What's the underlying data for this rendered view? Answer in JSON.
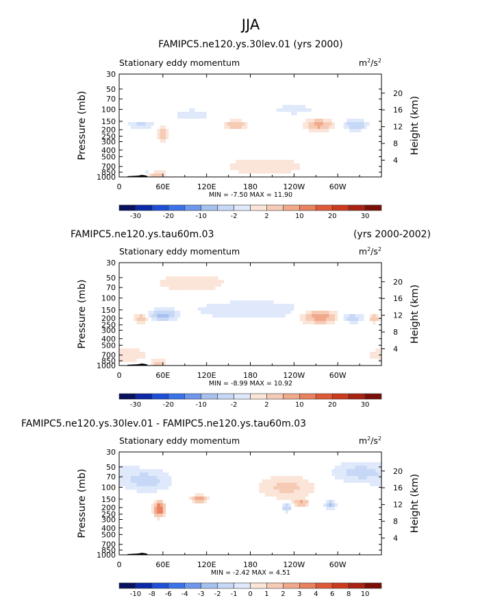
{
  "main_title": "JJA",
  "colors": {
    "neutral": "#ffffff",
    "neg1": "#dfe9fb",
    "neg2": "#c6d8f5",
    "neg3": "#a7c1ef",
    "pos1": "#fbe5d9",
    "pos2": "#f6cbb5",
    "pos3": "#f0a98b",
    "pos4": "#e8815f",
    "scale_negative": [
      "#08125e",
      "#0b28a8",
      "#1f4fd6",
      "#3a72e8",
      "#6f97ec",
      "#a7c1ef",
      "#c6d8f5",
      "#dfe9fb"
    ],
    "scale_positive": [
      "#fbe5d9",
      "#f6cbb5",
      "#f0a98b",
      "#e8815f",
      "#de5a37",
      "#cc3a1e",
      "#a82314",
      "#7a0f08"
    ],
    "topography": "#000000"
  },
  "chart_data": [
    {
      "type": "heatmap",
      "title": "FAMIPC5.ne120.ys.30lev.01 (yrs 2000)",
      "title_right": "",
      "subtitle_left": "Stationary eddy momentum",
      "units_base": "m",
      "units_exp1": "2",
      "units_mid": "/s",
      "units_exp2": "2",
      "ylabel": "Pressure (mb)",
      "ylabel_right": "Height (km)",
      "pressure_ticks": [
        "30",
        "50",
        "70",
        "100",
        "150",
        "200",
        "250",
        "300",
        "400",
        "500",
        "700",
        "850",
        "1000"
      ],
      "height_ticks": [
        "20",
        "16",
        "12",
        "8",
        "4"
      ],
      "x_ticks": [
        "0",
        "60E",
        "120E",
        "180",
        "120W",
        "60W"
      ],
      "min_label": "MIN =",
      "min_value": "-7.50",
      "max_label": "MAX =",
      "max_value": "11.90",
      "colorbar_labels": [
        "-30",
        "-20",
        "-10",
        "-2",
        "2",
        "10",
        "20",
        "30"
      ],
      "features": [
        {
          "lon": 160,
          "p": 170,
          "value": 5,
          "sx": 10,
          "sy": 0.1
        },
        {
          "lon": 275,
          "p": 170,
          "value": 6,
          "sx": 12,
          "sy": 0.13
        },
        {
          "lon": 325,
          "p": 170,
          "value": -5,
          "sx": 10,
          "sy": 0.12
        },
        {
          "lon": 30,
          "p": 170,
          "value": -3,
          "sx": 12,
          "sy": 0.1
        },
        {
          "lon": 60,
          "p": 230,
          "value": 4,
          "sx": 5,
          "sy": 0.16
        },
        {
          "lon": 100,
          "p": 120,
          "value": -2,
          "sx": 18,
          "sy": 0.14
        },
        {
          "lon": 240,
          "p": 100,
          "value": -2,
          "sx": 20,
          "sy": 0.12
        },
        {
          "lon": 52,
          "p": 900,
          "value": 6,
          "sx": 8,
          "sy": 0.05
        },
        {
          "lon": 40,
          "p": 850,
          "value": -2,
          "sx": 6,
          "sy": 0.05
        },
        {
          "lon": 200,
          "p": 700,
          "value": 1.8,
          "sx": 45,
          "sy": 0.25
        }
      ]
    },
    {
      "type": "heatmap",
      "title": "FAMIPC5.ne120.ys.tau60m.03",
      "title_right": "(yrs 2000-2002)",
      "subtitle_left": "Stationary eddy momentum",
      "units_base": "m",
      "units_exp1": "2",
      "units_mid": "/s",
      "units_exp2": "2",
      "ylabel": "Pressure (mb)",
      "ylabel_right": "Height (km)",
      "pressure_ticks": [
        "30",
        "50",
        "70",
        "100",
        "150",
        "200",
        "250",
        "300",
        "400",
        "500",
        "700",
        "850",
        "1000"
      ],
      "height_ticks": [
        "20",
        "16",
        "12",
        "8",
        "4"
      ],
      "x_ticks": [
        "0",
        "60E",
        "120E",
        "180",
        "120W",
        "60W"
      ],
      "min_label": "MIN =",
      "min_value": "-8.99",
      "max_label": "MAX =",
      "max_value": "10.92",
      "colorbar_labels": [
        "-30",
        "-20",
        "-10",
        "-2",
        "2",
        "10",
        "20",
        "30"
      ],
      "features": [
        {
          "lon": 60,
          "p": 180,
          "value": -6,
          "sx": 12,
          "sy": 0.12
        },
        {
          "lon": 30,
          "p": 200,
          "value": 4,
          "sx": 7,
          "sy": 0.12
        },
        {
          "lon": 275,
          "p": 190,
          "value": 7,
          "sx": 16,
          "sy": 0.15
        },
        {
          "lon": 320,
          "p": 200,
          "value": -4,
          "sx": 10,
          "sy": 0.1
        },
        {
          "lon": 350,
          "p": 200,
          "value": 4,
          "sx": 5,
          "sy": 0.1
        },
        {
          "lon": 180,
          "p": 150,
          "value": -2,
          "sx": 60,
          "sy": 0.25
        },
        {
          "lon": 100,
          "p": 60,
          "value": 1.8,
          "sx": 40,
          "sy": 0.25
        },
        {
          "lon": 55,
          "p": 900,
          "value": 5,
          "sx": 7,
          "sy": 0.05
        },
        {
          "lon": 10,
          "p": 700,
          "value": 1.8,
          "sx": 25,
          "sy": 0.2
        }
      ]
    },
    {
      "type": "heatmap",
      "title": "FAMIPC5.ne120.ys.30lev.01 - FAMIPC5.ne120.ys.tau60m.03",
      "title_right": "",
      "subtitle_left": "Stationary eddy momentum",
      "units_base": "m",
      "units_exp1": "2",
      "units_mid": "/s",
      "units_exp2": "2",
      "ylabel": "Pressure (mb)",
      "ylabel_right": "Height (km)",
      "pressure_ticks": [
        "30",
        "50",
        "70",
        "100",
        "150",
        "200",
        "250",
        "300",
        "400",
        "500",
        "700",
        "850",
        "1000"
      ],
      "height_ticks": [
        "20",
        "16",
        "12",
        "8",
        "4"
      ],
      "x_ticks": [
        "0",
        "60E",
        "120E",
        "180",
        "120W",
        "60W"
      ],
      "min_label": "MIN =",
      "min_value": "-2.42",
      "max_label": "MAX =",
      "max_value": "4.51",
      "colorbar_labels": [
        "-10",
        "-8",
        "-6",
        "-4",
        "-3",
        "-2",
        "-1",
        "0",
        "1",
        "2",
        "3",
        "4",
        "6",
        "8",
        "10"
      ],
      "features": [
        {
          "lon": 55,
          "p": 210,
          "value": 4.5,
          "sx": 5,
          "sy": 0.16
        },
        {
          "lon": 110,
          "p": 150,
          "value": 2.5,
          "sx": 7,
          "sy": 0.1
        },
        {
          "lon": 230,
          "p": 100,
          "value": 1.2,
          "sx": 30,
          "sy": 0.3
        },
        {
          "lon": 250,
          "p": 170,
          "value": 2.2,
          "sx": 6,
          "sy": 0.08
        },
        {
          "lon": 290,
          "p": 180,
          "value": -2.2,
          "sx": 5,
          "sy": 0.1
        },
        {
          "lon": 230,
          "p": 200,
          "value": -1.8,
          "sx": 5,
          "sy": 0.1
        },
        {
          "lon": 330,
          "p": 60,
          "value": -1.2,
          "sx": 30,
          "sy": 0.3
        },
        {
          "lon": 40,
          "p": 80,
          "value": -1.2,
          "sx": 25,
          "sy": 0.3
        }
      ]
    }
  ]
}
